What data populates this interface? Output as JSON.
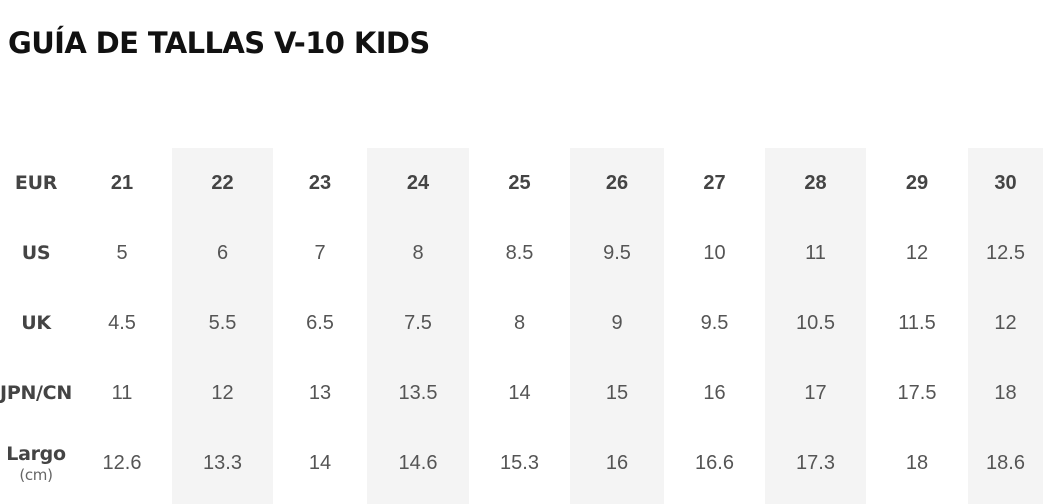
{
  "title": "GUÍA DE TALLAS V-10 KIDS",
  "table": {
    "header": {
      "label": "EUR",
      "values": [
        "21",
        "22",
        "23",
        "24",
        "25",
        "26",
        "27",
        "28",
        "29",
        "30"
      ]
    },
    "rows": [
      {
        "label": "US",
        "unit": "",
        "values": [
          "5",
          "6",
          "7",
          "8",
          "8.5",
          "9.5",
          "10",
          "11",
          "12",
          "12.5"
        ]
      },
      {
        "label": "UK",
        "unit": "",
        "values": [
          "4.5",
          "5.5",
          "6.5",
          "7.5",
          "8",
          "9",
          "9.5",
          "10.5",
          "11.5",
          "12"
        ]
      },
      {
        "label": "JPN/CN",
        "unit": "",
        "values": [
          "11",
          "12",
          "13",
          "13.5",
          "14",
          "15",
          "16",
          "17",
          "17.5",
          "18"
        ]
      },
      {
        "label": "Largo",
        "unit": "(cm)",
        "values": [
          "12.6",
          "13.3",
          "14",
          "14.6",
          "15.3",
          "16",
          "16.6",
          "17.3",
          "18",
          "18.6"
        ]
      }
    ]
  },
  "colors": {
    "shaded_column": "#f4f4f4",
    "title_text": "#111111",
    "body_text": "#555555"
  }
}
